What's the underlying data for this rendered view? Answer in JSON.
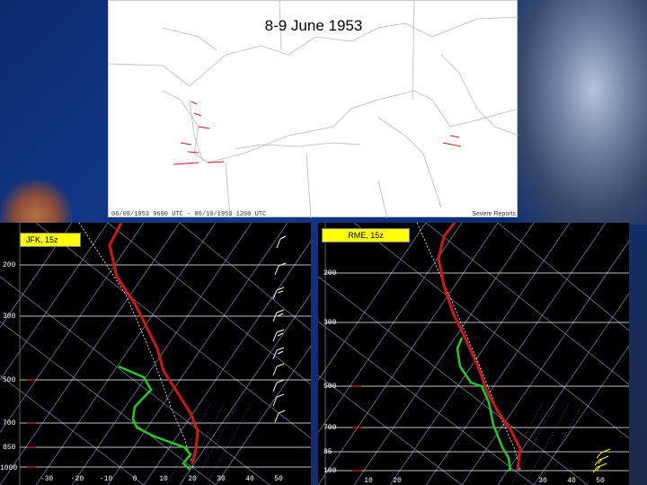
{
  "map": {
    "title": "8-9 June 1953",
    "footer_left": "06/08/1953 0600 UTC - 06/10/1953 1200 UTC",
    "footer_right": "Severe Reports"
  },
  "soundings": [
    {
      "station_label": "JFK, 15z",
      "pressure_labels": [
        "200",
        "300",
        "500",
        "700",
        "850",
        "1000"
      ],
      "temp_labels": [
        "-30",
        "-20",
        "-10",
        "0",
        "10",
        "20",
        "30",
        "40",
        "50"
      ]
    },
    {
      "station_label": "RME, 15z",
      "pressure_labels": [
        "200",
        "300",
        "500",
        "700",
        "85",
        "100"
      ],
      "temp_labels": [
        "10",
        "20",
        "30",
        "40",
        "50"
      ]
    }
  ],
  "colors": {
    "temperature": "#d01818",
    "dewpoint": "#22cc22",
    "isobar": "#ffffff",
    "isotherm": "#8f9cc6",
    "marker": "#ff3030"
  }
}
